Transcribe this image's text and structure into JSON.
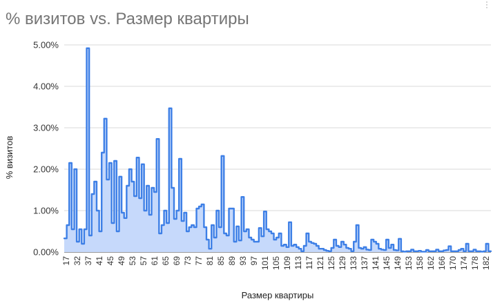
{
  "chart_data": {
    "type": "area",
    "title": "% визитов vs. Размер квартиры",
    "xlabel": "Размер квартиры",
    "ylabel": "% визитов",
    "y_ticks": [
      "0.00%",
      "1.00%",
      "2.00%",
      "3.00%",
      "4.00%",
      "5.00%"
    ],
    "ylim": [
      0,
      5
    ],
    "x_ticks": [
      "17",
      "32",
      "37",
      "41",
      "45",
      "49",
      "53",
      "57",
      "61",
      "65",
      "69",
      "73",
      "77",
      "81",
      "85",
      "89",
      "93",
      "97",
      "101",
      "105",
      "109",
      "113",
      "117",
      "121",
      "125",
      "129",
      "133",
      "137",
      "141",
      "145",
      "149",
      "153",
      "158",
      "162",
      "166",
      "170",
      "174",
      "178",
      "182"
    ],
    "grid": true,
    "legend": "none",
    "line_color": "#3d7fe6",
    "fill_color": "#c6d9fb",
    "series": [
      {
        "values": [
          0.33,
          0.65,
          2.15,
          0.55,
          2.0,
          0.25,
          0.55,
          0.2,
          0.55,
          4.92,
          0.4,
          1.4,
          1.7,
          1.0,
          0.5,
          2.4,
          3.22,
          1.75,
          2.15,
          0.7,
          2.2,
          0.5,
          1.82,
          0.95,
          0.82,
          1.6,
          2.0,
          1.7,
          1.35,
          2.28,
          1.3,
          2.12,
          1.0,
          1.6,
          0.9,
          1.55,
          1.45,
          2.73,
          0.45,
          0.65,
          1.0,
          0.7,
          3.47,
          1.55,
          0.8,
          1.0,
          2.25,
          0.75,
          0.95,
          0.5,
          0.6,
          0.65,
          0.6,
          1.05,
          1.1,
          1.15,
          0.6,
          0.3,
          0.08,
          0.65,
          0.35,
          1.0,
          0.6,
          2.32,
          0.45,
          0.4,
          1.05,
          1.05,
          0.25,
          0.62,
          0.28,
          1.33,
          0.5,
          0.55,
          0.35,
          0.3,
          0.25,
          0.25,
          0.58,
          0.38,
          0.98,
          0.55,
          0.5,
          0.45,
          0.3,
          0.35,
          0.45,
          0.15,
          0.18,
          0.12,
          0.72,
          0.15,
          0.18,
          0.12,
          0.08,
          0.02,
          0.15,
          0.45,
          0.25,
          0.22,
          0.2,
          0.15,
          0.08,
          0.08,
          0.05,
          0.03,
          0.02,
          0.1,
          0.3,
          0.15,
          0.12,
          0.25,
          0.18,
          0.1,
          0.08,
          0.02,
          0.25,
          0.65,
          0.1,
          0.08,
          0.12,
          0.06,
          0.05,
          0.3,
          0.25,
          0.2,
          0.08,
          0.06,
          0.05,
          0.3,
          0.1,
          0.18,
          0.05,
          0.04,
          0.32,
          0.02,
          0.01,
          0.02,
          0.02,
          0.06,
          0.02,
          0.02,
          0.03,
          0.01,
          0.01,
          0.05,
          0.02,
          0.02,
          0.02,
          0.06,
          0.02,
          0.02,
          0.04,
          0.05,
          0.14,
          0.02,
          0.02,
          0.02,
          0.05,
          0.08,
          0.02,
          0.2,
          0.02,
          0.02,
          0.06,
          0.02,
          0.02,
          0.01,
          0.02,
          0.2,
          0.02
        ]
      }
    ]
  }
}
